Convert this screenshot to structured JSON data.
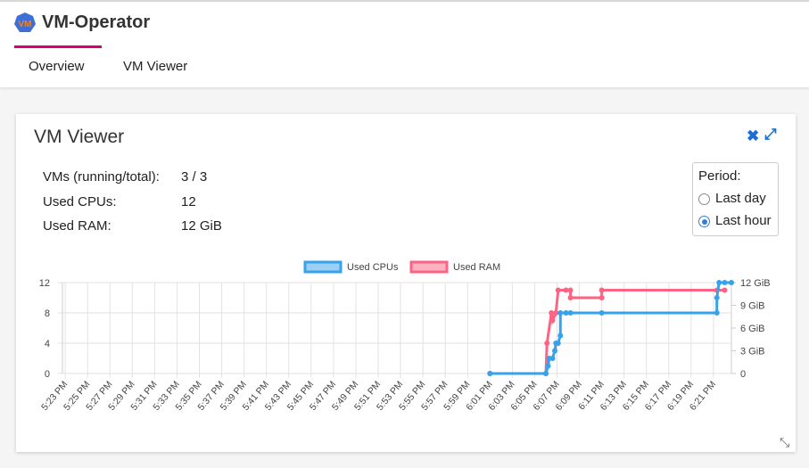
{
  "app": {
    "title": "VM-Operator",
    "logo_text": "VM"
  },
  "tabs": [
    {
      "label": "Overview",
      "active": true
    },
    {
      "label": "VM Viewer",
      "active": false
    }
  ],
  "accent": "#d6006f",
  "widget": {
    "title": "VM Viewer",
    "stats": [
      {
        "label": "VMs (running/total):",
        "value": "3 / 3"
      },
      {
        "label": "Used CPUs:",
        "value": "12"
      },
      {
        "label": "Used RAM:",
        "value": "12 GiB"
      }
    ],
    "period": {
      "label": "Period:",
      "options": [
        {
          "label": "Last day",
          "selected": false
        },
        {
          "label": "Last hour",
          "selected": true
        }
      ]
    }
  },
  "chart_data": {
    "type": "line",
    "legend_position": "top",
    "grid": true,
    "x_ticks": [
      "5:23 PM",
      "5:25 PM",
      "5:27 PM",
      "5:29 PM",
      "5:31 PM",
      "5:33 PM",
      "5:35 PM",
      "5:37 PM",
      "5:39 PM",
      "5:41 PM",
      "5:43 PM",
      "5:45 PM",
      "5:47 PM",
      "5:49 PM",
      "5:51 PM",
      "5:53 PM",
      "5:55 PM",
      "5:57 PM",
      "5:59 PM",
      "6:01 PM",
      "6:03 PM",
      "6:05 PM",
      "6:07 PM",
      "6:09 PM",
      "6:11 PM",
      "6:13 PM",
      "6:15 PM",
      "6:17 PM",
      "6:19 PM",
      "6:21 PM"
    ],
    "y_left": {
      "ticks": [
        "0",
        "4",
        "8",
        "12"
      ],
      "range": [
        0,
        12
      ]
    },
    "y_right": {
      "ticks": [
        "0",
        "3 GiB",
        "6 GiB",
        "9 GiB",
        "12 GiB"
      ],
      "range": [
        0,
        12
      ]
    },
    "x_range": [
      "17:22:45",
      "18:22:36"
    ],
    "series": [
      {
        "name": "Used CPUs",
        "color": "#36a2eb",
        "axis": "left",
        "points": [
          [
            "18:01:00",
            0
          ],
          [
            "18:06:00",
            0
          ],
          [
            "18:06:12",
            1
          ],
          [
            "18:06:18",
            2
          ],
          [
            "18:06:36",
            2
          ],
          [
            "18:06:48",
            3
          ],
          [
            "18:06:54",
            4
          ],
          [
            "18:07:06",
            4
          ],
          [
            "18:07:18",
            5
          ],
          [
            "18:07:18",
            8
          ],
          [
            "18:07:48",
            8
          ],
          [
            "18:08:12",
            8
          ],
          [
            "18:11:00",
            8
          ],
          [
            "18:21:18",
            8
          ],
          [
            "18:21:18",
            10
          ],
          [
            "18:21:30",
            12
          ],
          [
            "18:22:00",
            12
          ],
          [
            "18:22:36",
            12
          ]
        ]
      },
      {
        "name": "Used RAM",
        "color": "#ff6384",
        "axis": "right",
        "points": [
          [
            "18:01:00",
            0
          ],
          [
            "18:06:00",
            0
          ],
          [
            "18:06:06",
            4
          ],
          [
            "18:06:30",
            8
          ],
          [
            "18:06:36",
            7
          ],
          [
            "18:06:54",
            8
          ],
          [
            "18:07:06",
            11
          ],
          [
            "18:07:48",
            11
          ],
          [
            "18:08:12",
            11
          ],
          [
            "18:08:12",
            10
          ],
          [
            "18:11:00",
            10
          ],
          [
            "18:11:00",
            11
          ],
          [
            "18:21:18",
            11
          ],
          [
            "18:22:00",
            11
          ]
        ]
      }
    ]
  }
}
